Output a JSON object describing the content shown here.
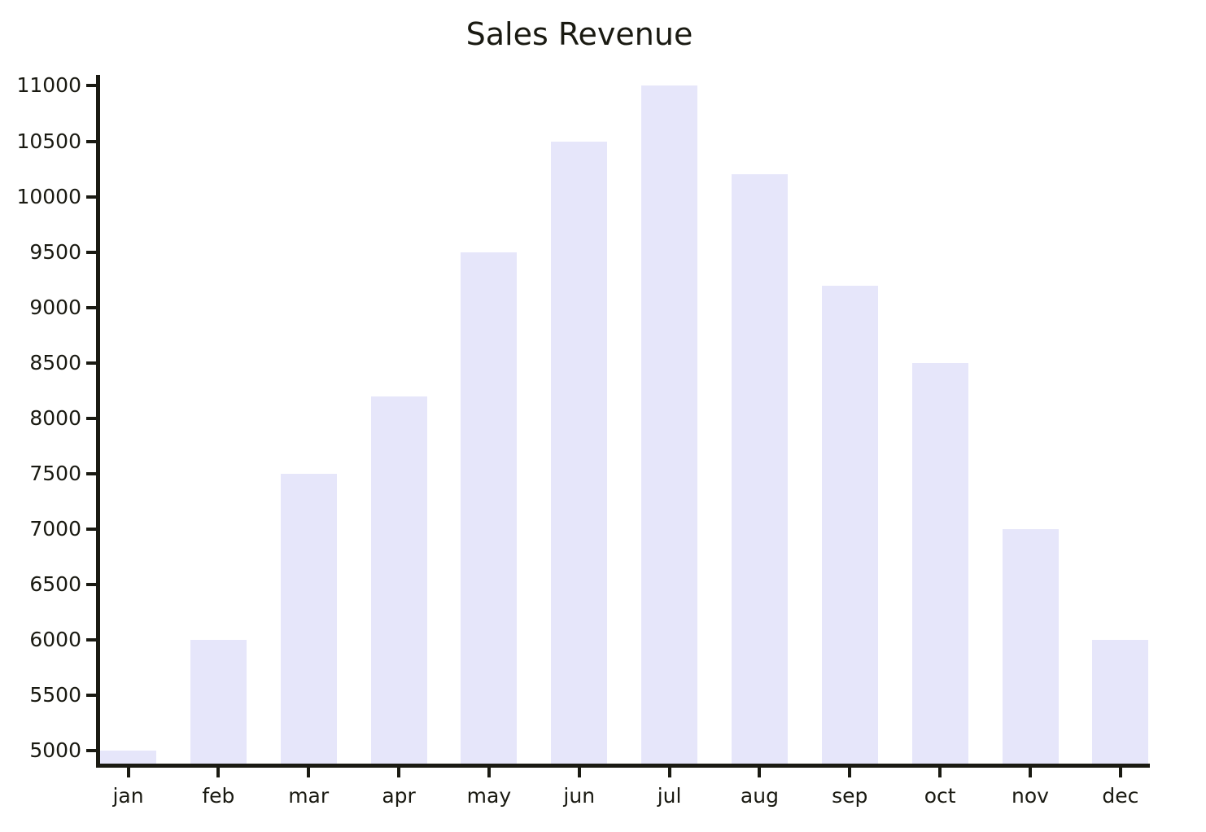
{
  "chart_data": {
    "type": "bar",
    "title": "Sales Revenue",
    "xlabel": "",
    "ylabel": "",
    "categories": [
      "jan",
      "feb",
      "mar",
      "apr",
      "may",
      "jun",
      "jul",
      "aug",
      "sep",
      "oct",
      "nov",
      "dec"
    ],
    "values": [
      5000,
      6000,
      7500,
      8200,
      9500,
      10500,
      11000,
      10200,
      9200,
      8500,
      7000,
      6000
    ],
    "yticks": [
      5000,
      5500,
      6000,
      6500,
      7000,
      7500,
      8000,
      8500,
      9000,
      9500,
      10000,
      10500,
      11000
    ],
    "ylim": [
      4886,
      11099
    ],
    "grid": false,
    "legend": null,
    "colors": {
      "bar_fill": "#e6e6fa",
      "axis": "#1a1a12",
      "text": "#1a1a12",
      "background": "#ffffff"
    }
  }
}
